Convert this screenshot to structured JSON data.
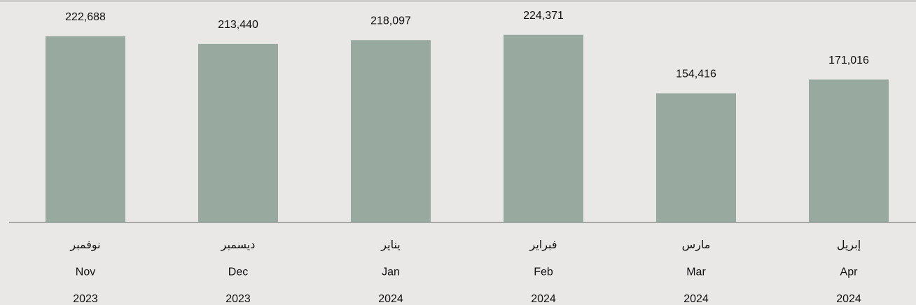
{
  "chart_data": {
    "type": "bar",
    "categories": [
      [
        "نوفمبر",
        "Nov",
        "2023"
      ],
      [
        "ديسمبر",
        "Dec",
        "2023"
      ],
      [
        "يناير",
        "Jan",
        "2024"
      ],
      [
        "فبراير",
        "Feb",
        "2024"
      ],
      [
        "مارس",
        "Mar",
        "2024"
      ],
      [
        "إبريل",
        "Apr",
        "2024"
      ]
    ],
    "values": [
      222688,
      213440,
      218097,
      224371,
      154416,
      171016
    ],
    "value_labels": [
      "222,688",
      "213,440",
      "218,097",
      "224,371",
      "154,416",
      "171,016"
    ],
    "color": "#98aa9f",
    "ylim": [
      0,
      266000
    ]
  }
}
